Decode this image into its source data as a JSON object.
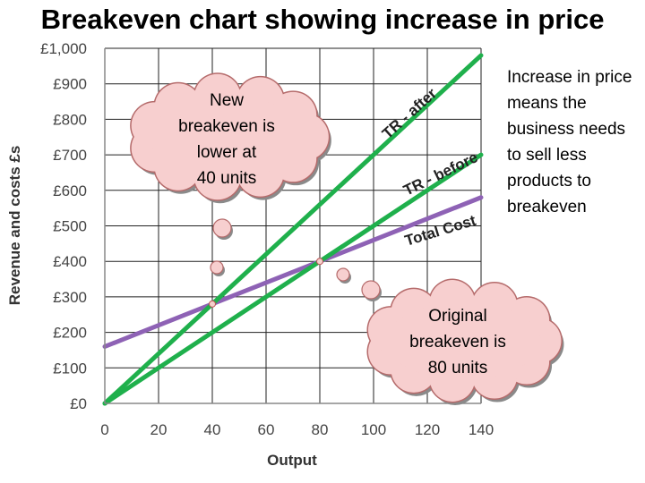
{
  "slide": {
    "title": "Breakeven chart showing increase in price",
    "side_note": "Increase in price means the business needs to sell less products to breakeven"
  },
  "chart_data": {
    "type": "line",
    "xlabel": "Output",
    "ylabel": "Revenue and costs £s",
    "xlim": [
      0,
      140
    ],
    "ylim": [
      0,
      1000
    ],
    "x_ticks": [
      "0",
      "20",
      "40",
      "60",
      "80",
      "100",
      "120",
      "140"
    ],
    "y_ticks": [
      "£0",
      "£100",
      "£200",
      "£300",
      "£400",
      "£500",
      "£600",
      "£700",
      "£800",
      "£900",
      "£1,000"
    ],
    "grid": true,
    "x": [
      0,
      140
    ],
    "series": [
      {
        "name": "TR - after",
        "values": [
          0,
          980
        ],
        "color": "#1fb04c"
      },
      {
        "name": "TR - before",
        "values": [
          0,
          700
        ],
        "color": "#1fb04c"
      },
      {
        "name": "Total Cost",
        "values": [
          160,
          580
        ],
        "color": "#8e62b5"
      }
    ],
    "breakeven_points": [
      {
        "x": 40,
        "y": 280
      },
      {
        "x": 80,
        "y": 400
      }
    ],
    "annotations": [
      {
        "text_lines": [
          "New",
          "breakeven is",
          "lower at",
          "40 units"
        ],
        "points_to": {
          "x": 40,
          "y": 280
        }
      },
      {
        "text_lines": [
          "Original",
          "breakeven is",
          "80 units"
        ],
        "points_to": {
          "x": 80,
          "y": 400
        }
      }
    ]
  }
}
